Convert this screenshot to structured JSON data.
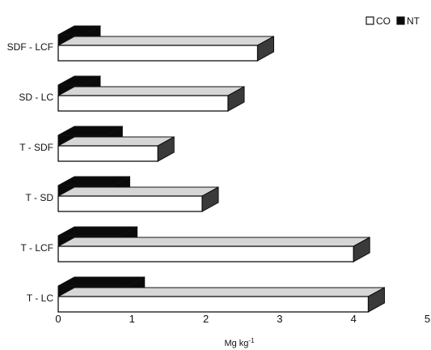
{
  "chart_data": {
    "type": "bar",
    "orientation": "horizontal",
    "style": "3d",
    "categories": [
      "SDF - LCF",
      "SD - LC",
      "T - SDF",
      "T - SD",
      "T - LCF",
      "T - LC"
    ],
    "series": [
      {
        "name": "CO",
        "values": [
          2.7,
          2.3,
          1.35,
          1.95,
          4.0,
          4.2
        ],
        "color": "#ffffff"
      },
      {
        "name": "NT",
        "values": [
          0.35,
          0.35,
          0.65,
          0.75,
          0.85,
          0.95
        ],
        "color": "#0a0a0a"
      }
    ],
    "title": "",
    "xlabel": "Mg kg⁻¹",
    "ylabel": "",
    "xlim": [
      0,
      5
    ],
    "xticks": [
      "0",
      "1",
      "2",
      "3",
      "4",
      "5"
    ],
    "grid": false,
    "legend_position": "top-right",
    "colors": {
      "background": "#ffffff",
      "co_front": "#ffffff",
      "co_top": "#d6d6d6",
      "co_side": "#3a3a3a",
      "nt": "#0a0a0a",
      "stroke": "#111111"
    }
  }
}
